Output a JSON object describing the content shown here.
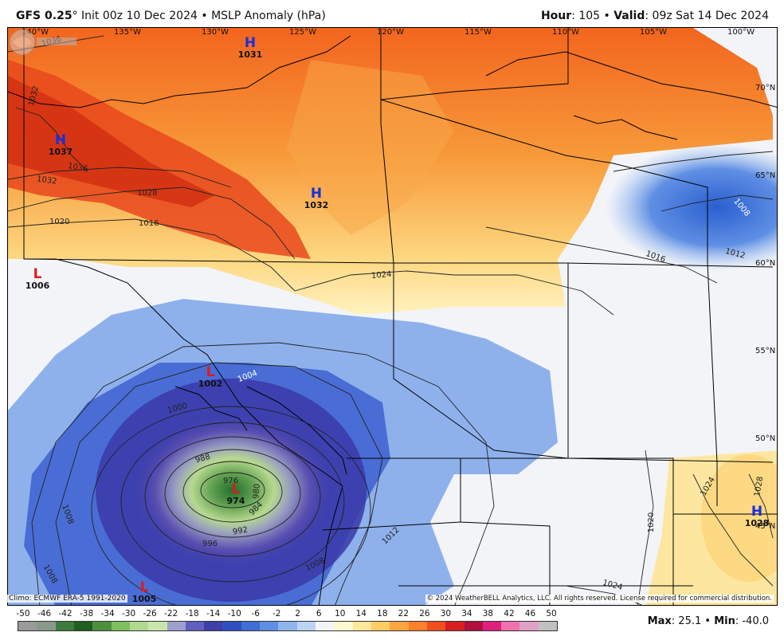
{
  "header": {
    "model": "GFS 0.25",
    "deg": "°",
    "init": " Init 00z 10 Dec 2024",
    "bullet": " • ",
    "field": "MSLP Anomaly (hPa)",
    "hour_label": "Hour",
    "hour_value": ": 105 • ",
    "valid_label": "Valid",
    "valid_value": ": 09z Sat 14 Dec 2024"
  },
  "map": {
    "longitude_labels": [
      "140°W",
      "135°W",
      "130°W",
      "125°W",
      "120°W",
      "115°W",
      "110°W",
      "105°W",
      "100°W"
    ],
    "latitude_labels": [
      "70°N",
      "65°N",
      "60°N",
      "55°N",
      "50°N",
      "45°N"
    ],
    "pressure_centers": [
      {
        "type": "H",
        "value": "1031",
        "color": "#1a2ee0"
      },
      {
        "type": "H",
        "value": "1037",
        "color": "#1a2ee0"
      },
      {
        "type": "H",
        "value": "1032",
        "color": "#1a2ee0"
      },
      {
        "type": "L",
        "value": "1006",
        "color": "#e0191a"
      },
      {
        "type": "L",
        "value": "1002",
        "color": "#e0191a"
      },
      {
        "type": "L",
        "value": "974",
        "color": "#e0191a"
      },
      {
        "type": "L",
        "value": "1005",
        "color": "#e0191a"
      },
      {
        "type": "H",
        "value": "1028",
        "color": "#1a2ee0"
      }
    ],
    "isobar_labels": [
      "1036",
      "1032",
      "1036",
      "1032",
      "1028",
      "1020",
      "1016",
      "1024",
      "1016",
      "1012",
      "1008",
      "1000",
      "988",
      "976",
      "980",
      "984",
      "992",
      "996",
      "1008",
      "1012",
      "1008",
      "1020",
      "1024",
      "1024",
      "1028",
      "1004",
      "1008"
    ]
  },
  "footer": {
    "climo": "Climo: ECMWF ERA-5 1991-2020",
    "copyright": "© 2024 WeatherBELL Analytics, LLC. All rights reserved. License required for commercial distribution.",
    "colorbar_ticks": [
      "-50",
      "-46",
      "-42",
      "-38",
      "-34",
      "-30",
      "-26",
      "-22",
      "-18",
      "-14",
      "-10",
      "-6",
      "-2",
      "2",
      "6",
      "10",
      "14",
      "18",
      "22",
      "26",
      "30",
      "34",
      "38",
      "42",
      "46",
      "50"
    ],
    "colorbar_colors": [
      "#9a9a9a",
      "#8a9a8a",
      "#3f7a3f",
      "#1f5f1f",
      "#4e8f3e",
      "#7fbf5f",
      "#afd98f",
      "#c9e7ad",
      "#9f9fcf",
      "#5f5fbf",
      "#3f3fa8",
      "#2f4fbf",
      "#3f6fd4",
      "#5f8fe4",
      "#8fb5ee",
      "#bcd4f4",
      "#f2f4f8",
      "#fff8d0",
      "#ffe89a",
      "#ffcc66",
      "#ffa640",
      "#ff7f2a",
      "#f24f1f",
      "#d81f1f",
      "#b01040",
      "#e02080",
      "#f070b0",
      "#e0a0c8",
      "#c0c0c0"
    ],
    "max_label": "Max",
    "max_value": ": 25.1 • ",
    "min_label": "Min",
    "min_value": ": -40.0"
  }
}
